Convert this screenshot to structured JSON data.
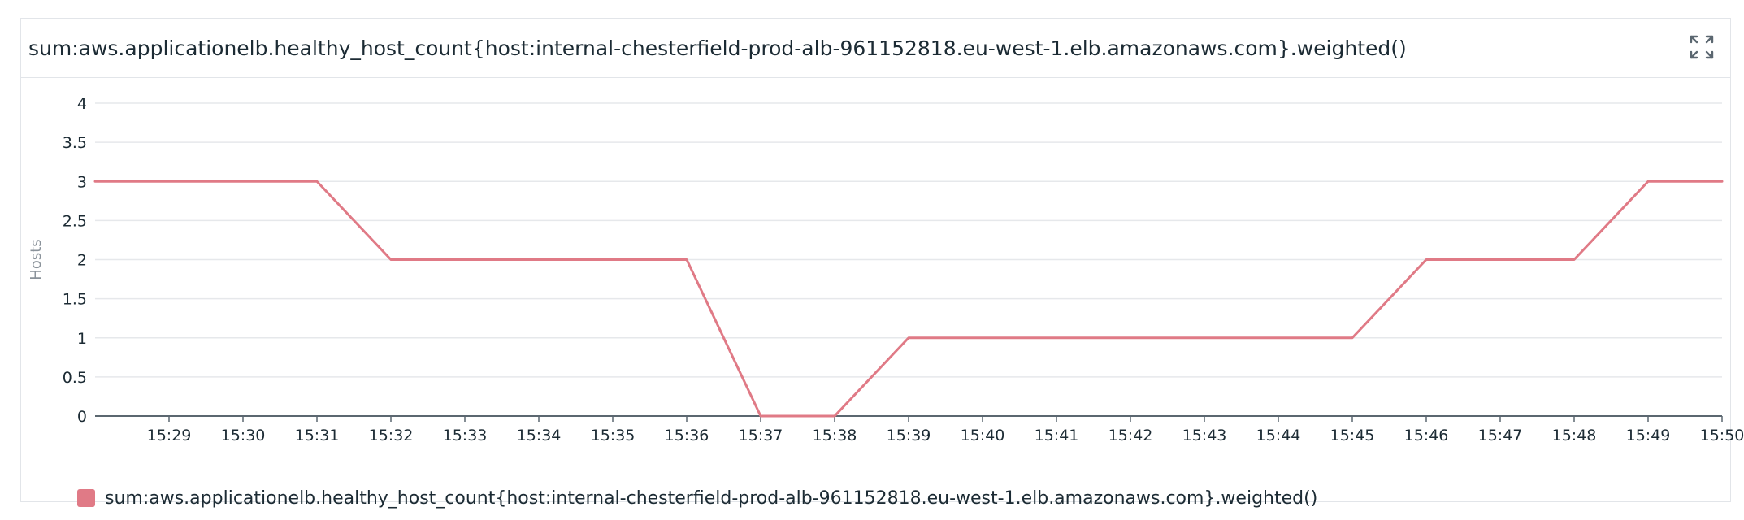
{
  "widget": {
    "title": "sum:aws.applicationelb.healthy_host_count{host:internal-chesterfield-prod-alb-961152818.eu-west-1.elb.amazonaws.com}.weighted()",
    "expand_icon": "expand-icon"
  },
  "chart_data": {
    "type": "line",
    "title": "sum:aws.applicationelb.healthy_host_count{host:internal-chesterfield-prod-alb-961152818.eu-west-1.elb.amazonaws.com}.weighted()",
    "xlabel": "",
    "ylabel": "Hosts",
    "ylim": [
      0,
      4
    ],
    "yticks": [
      "0",
      "0.5",
      "1",
      "1.5",
      "2",
      "2.5",
      "3",
      "3.5",
      "4"
    ],
    "xticks": [
      "15:29",
      "15:30",
      "15:31",
      "15:32",
      "15:33",
      "15:34",
      "15:35",
      "15:36",
      "15:37",
      "15:38",
      "15:39",
      "15:40",
      "15:41",
      "15:42",
      "15:43",
      "15:44",
      "15:45",
      "15:46",
      "15:47",
      "15:48",
      "15:49",
      "15:50"
    ],
    "grid": true,
    "legend_position": "bottom-left",
    "series": [
      {
        "name": "sum:aws.applicationelb.healthy_host_count{host:internal-chesterfield-prod-alb-961152818.eu-west-1.elb.amazonaws.com}.weighted()",
        "color": "#e07a86",
        "x": [
          "15:28",
          "15:29",
          "15:30",
          "15:31",
          "15:32",
          "15:33",
          "15:34",
          "15:35",
          "15:36",
          "15:37",
          "15:38",
          "15:39",
          "15:40",
          "15:41",
          "15:42",
          "15:43",
          "15:44",
          "15:45",
          "15:46",
          "15:47",
          "15:48",
          "15:49",
          "15:50"
        ],
        "values": [
          3,
          3,
          3,
          3,
          2,
          2,
          2,
          2,
          2,
          0,
          0,
          1,
          1,
          1,
          1,
          1,
          1,
          1,
          2,
          2,
          2,
          3,
          3
        ]
      }
    ]
  }
}
